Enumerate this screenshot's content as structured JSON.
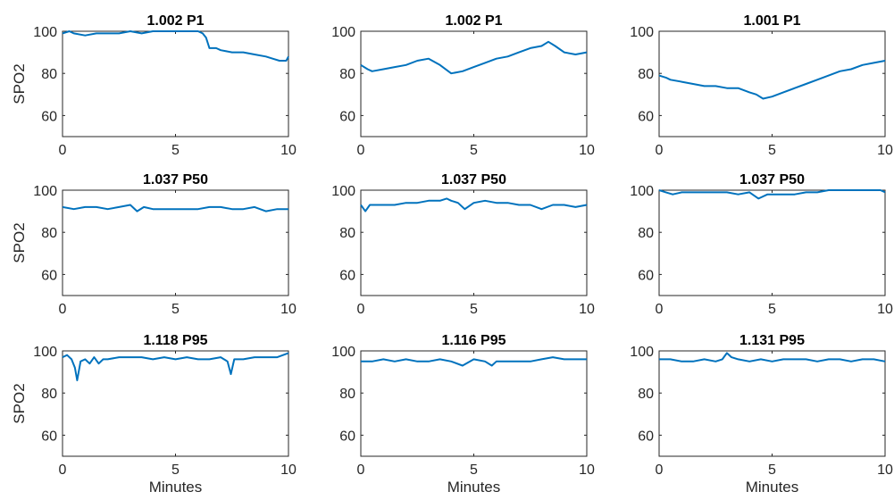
{
  "chart_data": [
    {
      "type": "line",
      "title": "1.002 P1",
      "ylabel": "SPO2",
      "xlabel": "",
      "xlim": [
        0,
        10
      ],
      "ylim": [
        50,
        100
      ],
      "xticks": [
        0,
        5,
        10
      ],
      "yticks": [
        60,
        80,
        100
      ],
      "grid": false,
      "color": "#0072BD",
      "series": [
        {
          "x": [
            0,
            0.3,
            0.5,
            1,
            1.5,
            2,
            2.5,
            3,
            3.5,
            4,
            4.5,
            5,
            5.5,
            6,
            6.2,
            6.35,
            6.5,
            6.8,
            7,
            7.5,
            8,
            8.5,
            9,
            9.3,
            9.6,
            9.9,
            10
          ],
          "y": [
            99,
            100,
            99,
            98,
            99,
            99,
            99,
            100,
            99,
            100,
            100,
            100,
            100,
            100,
            99,
            97,
            92,
            92,
            91,
            90,
            90,
            89,
            88,
            87,
            86,
            86,
            88
          ]
        }
      ]
    },
    {
      "type": "line",
      "title": "1.002 P1",
      "ylabel": "",
      "xlabel": "",
      "xlim": [
        0,
        10
      ],
      "ylim": [
        50,
        100
      ],
      "xticks": [
        0,
        5,
        10
      ],
      "yticks": [
        60,
        80,
        100
      ],
      "grid": false,
      "color": "#0072BD",
      "series": [
        {
          "x": [
            0,
            0.3,
            0.5,
            1,
            1.5,
            2,
            2.5,
            3,
            3.5,
            4,
            4.5,
            5,
            5.5,
            6,
            6.5,
            7,
            7.5,
            8,
            8.3,
            8.6,
            9,
            9.5,
            10
          ],
          "y": [
            84,
            82,
            81,
            82,
            83,
            84,
            86,
            87,
            84,
            80,
            81,
            83,
            85,
            87,
            88,
            90,
            92,
            93,
            95,
            93,
            90,
            89,
            90
          ]
        }
      ]
    },
    {
      "type": "line",
      "title": "1.001 P1",
      "ylabel": "",
      "xlabel": "",
      "xlim": [
        0,
        10
      ],
      "ylim": [
        50,
        100
      ],
      "xticks": [
        0,
        5,
        10
      ],
      "yticks": [
        60,
        80,
        100
      ],
      "grid": false,
      "color": "#0072BD",
      "series": [
        {
          "x": [
            0,
            0.3,
            0.5,
            1,
            1.5,
            2,
            2.5,
            3,
            3.5,
            4,
            4.3,
            4.6,
            5,
            5.5,
            6,
            6.5,
            7,
            7.5,
            8,
            8.5,
            9,
            9.5,
            10
          ],
          "y": [
            79,
            78,
            77,
            76,
            75,
            74,
            74,
            73,
            73,
            71,
            70,
            68,
            69,
            71,
            73,
            75,
            77,
            79,
            81,
            82,
            84,
            85,
            86
          ]
        }
      ]
    },
    {
      "type": "line",
      "title": "1.037 P50",
      "ylabel": "SPO2",
      "xlabel": "",
      "xlim": [
        0,
        10
      ],
      "ylim": [
        50,
        100
      ],
      "xticks": [
        0,
        5,
        10
      ],
      "yticks": [
        60,
        80,
        100
      ],
      "grid": false,
      "color": "#0072BD",
      "series": [
        {
          "x": [
            0,
            0.5,
            1,
            1.5,
            2,
            2.5,
            3,
            3.3,
            3.6,
            4,
            4.5,
            5,
            5.5,
            6,
            6.5,
            7,
            7.5,
            8,
            8.5,
            9,
            9.5,
            10
          ],
          "y": [
            92,
            91,
            92,
            92,
            91,
            92,
            93,
            90,
            92,
            91,
            91,
            91,
            91,
            91,
            92,
            92,
            91,
            91,
            92,
            90,
            91,
            91
          ]
        }
      ]
    },
    {
      "type": "line",
      "title": "1.037 P50",
      "ylabel": "",
      "xlabel": "",
      "xlim": [
        0,
        10
      ],
      "ylim": [
        50,
        100
      ],
      "xticks": [
        0,
        5,
        10
      ],
      "yticks": [
        60,
        80,
        100
      ],
      "grid": false,
      "color": "#0072BD",
      "series": [
        {
          "x": [
            0,
            0.2,
            0.4,
            0.7,
            1,
            1.5,
            2,
            2.5,
            3,
            3.5,
            3.8,
            4,
            4.3,
            4.6,
            5,
            5.5,
            6,
            6.5,
            7,
            7.5,
            8,
            8.5,
            9,
            9.5,
            10
          ],
          "y": [
            93,
            90,
            93,
            93,
            93,
            93,
            94,
            94,
            95,
            95,
            96,
            95,
            94,
            91,
            94,
            95,
            94,
            94,
            93,
            93,
            91,
            93,
            93,
            92,
            93
          ]
        }
      ]
    },
    {
      "type": "line",
      "title": "1.037 P50",
      "ylabel": "",
      "xlabel": "",
      "xlim": [
        0,
        10
      ],
      "ylim": [
        50,
        100
      ],
      "xticks": [
        0,
        5,
        10
      ],
      "yticks": [
        60,
        80,
        100
      ],
      "grid": false,
      "color": "#0072BD",
      "series": [
        {
          "x": [
            0,
            0.3,
            0.6,
            1,
            1.5,
            2,
            2.5,
            3,
            3.5,
            4,
            4.4,
            4.8,
            5,
            5.5,
            6,
            6.5,
            7,
            7.5,
            8,
            8.5,
            9,
            9.5,
            9.8,
            10
          ],
          "y": [
            100,
            99,
            98,
            99,
            99,
            99,
            99,
            99,
            98,
            99,
            96,
            98,
            98,
            98,
            98,
            99,
            99,
            100,
            100,
            100,
            100,
            100,
            100,
            99
          ]
        }
      ]
    },
    {
      "type": "line",
      "title": "1.118 P95",
      "ylabel": "SPO2",
      "xlabel": "Minutes",
      "xlim": [
        0,
        10
      ],
      "ylim": [
        50,
        100
      ],
      "xticks": [
        0,
        5,
        10
      ],
      "yticks": [
        60,
        80,
        100
      ],
      "grid": false,
      "color": "#0072BD",
      "series": [
        {
          "x": [
            0,
            0.2,
            0.4,
            0.55,
            0.65,
            0.8,
            1,
            1.2,
            1.4,
            1.6,
            1.8,
            2,
            2.5,
            3,
            3.5,
            4,
            4.5,
            5,
            5.5,
            6,
            6.5,
            7,
            7.3,
            7.45,
            7.6,
            8,
            8.5,
            9,
            9.5,
            10
          ],
          "y": [
            97,
            98,
            96,
            92,
            86,
            95,
            96,
            94,
            97,
            94,
            96,
            96,
            97,
            97,
            97,
            96,
            97,
            96,
            97,
            96,
            96,
            97,
            95,
            89,
            96,
            96,
            97,
            97,
            97,
            99
          ]
        }
      ]
    },
    {
      "type": "line",
      "title": "1.116 P95",
      "ylabel": "",
      "xlabel": "Minutes",
      "xlim": [
        0,
        10
      ],
      "ylim": [
        50,
        100
      ],
      "xticks": [
        0,
        5,
        10
      ],
      "yticks": [
        60,
        80,
        100
      ],
      "grid": false,
      "color": "#0072BD",
      "series": [
        {
          "x": [
            0,
            0.5,
            1,
            1.5,
            2,
            2.5,
            3,
            3.5,
            4,
            4.5,
            5,
            5.5,
            5.8,
            6,
            6.5,
            7,
            7.5,
            8,
            8.5,
            9,
            9.5,
            10
          ],
          "y": [
            95,
            95,
            96,
            95,
            96,
            95,
            95,
            96,
            95,
            93,
            96,
            95,
            93,
            95,
            95,
            95,
            95,
            96,
            97,
            96,
            96,
            96
          ]
        }
      ]
    },
    {
      "type": "line",
      "title": "1.131 P95",
      "ylabel": "",
      "xlabel": "Minutes",
      "xlim": [
        0,
        10
      ],
      "ylim": [
        50,
        100
      ],
      "xticks": [
        0,
        5,
        10
      ],
      "yticks": [
        60,
        80,
        100
      ],
      "grid": false,
      "color": "#0072BD",
      "series": [
        {
          "x": [
            0,
            0.5,
            1,
            1.5,
            2,
            2.5,
            2.8,
            3,
            3.2,
            3.5,
            4,
            4.5,
            5,
            5.5,
            6,
            6.5,
            7,
            7.5,
            8,
            8.5,
            9,
            9.5,
            10
          ],
          "y": [
            96,
            96,
            95,
            95,
            96,
            95,
            96,
            99,
            97,
            96,
            95,
            96,
            95,
            96,
            96,
            96,
            95,
            96,
            96,
            95,
            96,
            96,
            95
          ]
        }
      ]
    }
  ]
}
